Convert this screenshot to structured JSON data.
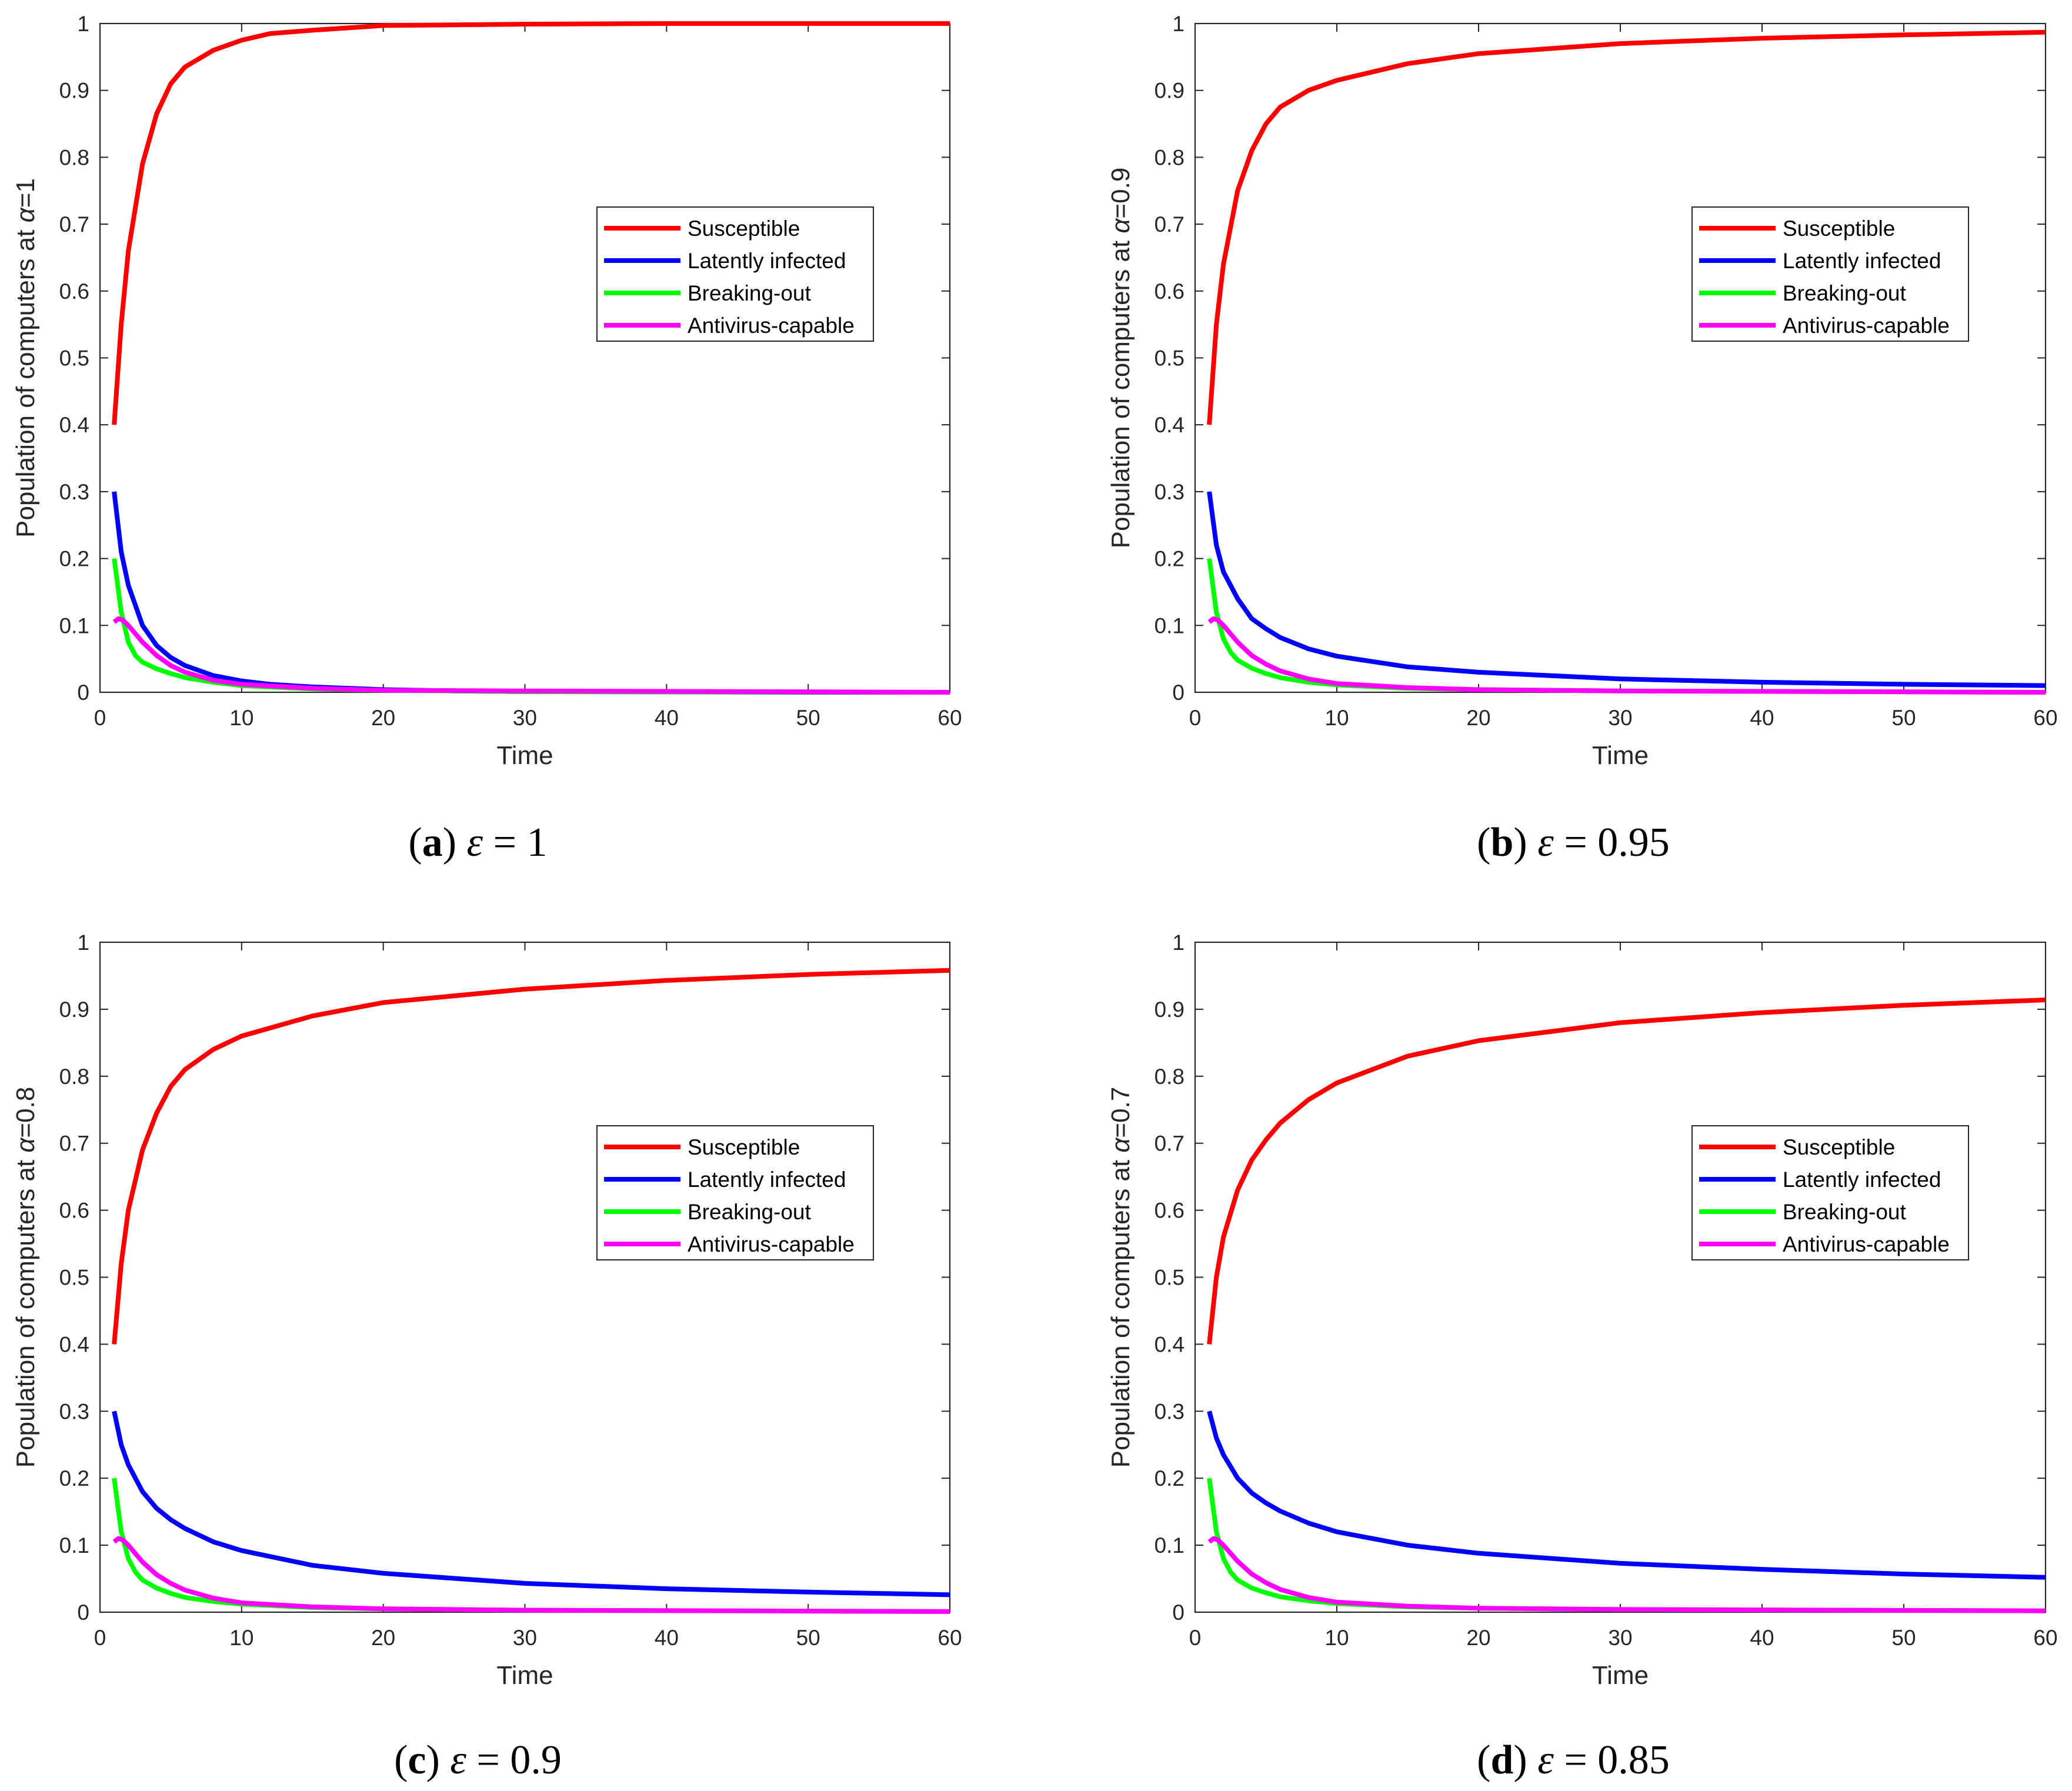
{
  "colors": {
    "susceptible": "#ff0000",
    "latently_infected": "#0000ff",
    "breaking_out": "#00ff00",
    "antivirus_capable": "#ff00ff",
    "axis": "#262626"
  },
  "legend_labels": [
    "Susceptible",
    "Latently infected",
    "Breaking-out",
    "Antivirus-capable"
  ],
  "chart_data": [
    {
      "type": "line",
      "panel": "a",
      "caption": {
        "letter": "a",
        "symbol": "ε",
        "rest": " = 1"
      },
      "xlabel": "Time",
      "ylabel_prefix": "Population of computers at ",
      "ylabel_symbol": "α",
      "ylabel_suffix": "=1",
      "xlim": [
        0,
        60
      ],
      "ylim": [
        0,
        1
      ],
      "xticks": [
        "0",
        "10",
        "20",
        "30",
        "40",
        "50",
        "60"
      ],
      "yticks": [
        "0",
        "0.1",
        "0.2",
        "0.3",
        "0.4",
        "0.5",
        "0.6",
        "0.7",
        "0.8",
        "0.9",
        "1"
      ],
      "legend_position": "middle-right",
      "series": [
        {
          "name": "Susceptible",
          "x": [
            1,
            1.5,
            2,
            3,
            4,
            5,
            6,
            8,
            10,
            12,
            15,
            20,
            25,
            30,
            40,
            50,
            60
          ],
          "values": [
            0.4,
            0.55,
            0.66,
            0.79,
            0.865,
            0.91,
            0.935,
            0.96,
            0.975,
            0.985,
            0.99,
            0.997,
            0.998,
            0.999,
            1.0,
            1.0,
            1.0
          ]
        },
        {
          "name": "Latently infected",
          "x": [
            1,
            1.5,
            2,
            3,
            4,
            5,
            6,
            8,
            10,
            12,
            15,
            20,
            25,
            30,
            40,
            50,
            60
          ],
          "values": [
            0.3,
            0.21,
            0.16,
            0.1,
            0.07,
            0.052,
            0.04,
            0.025,
            0.017,
            0.012,
            0.008,
            0.004,
            0.002,
            0.001,
            0.0005,
            0.0,
            0.0
          ]
        },
        {
          "name": "Breaking-out",
          "x": [
            1,
            1.5,
            2,
            2.5,
            3,
            4,
            5,
            6,
            8,
            10,
            15,
            20,
            30,
            60
          ],
          "values": [
            0.2,
            0.12,
            0.075,
            0.055,
            0.045,
            0.035,
            0.028,
            0.022,
            0.015,
            0.01,
            0.005,
            0.003,
            0.001,
            0.0
          ]
        },
        {
          "name": "Antivirus-capable",
          "x": [
            1,
            1.3,
            1.6,
            2,
            3,
            4,
            5,
            6,
            8,
            10,
            15,
            20,
            30,
            60
          ],
          "values": [
            0.105,
            0.11,
            0.108,
            0.1,
            0.075,
            0.055,
            0.04,
            0.03,
            0.018,
            0.012,
            0.006,
            0.003,
            0.002,
            0.0
          ]
        }
      ]
    },
    {
      "type": "line",
      "panel": "b",
      "caption": {
        "letter": "b",
        "symbol": "ε",
        "rest": " = 0.95"
      },
      "xlabel": "Time",
      "ylabel_prefix": "Population of computers at ",
      "ylabel_symbol": "α",
      "ylabel_suffix": "=0.9",
      "xlim": [
        0,
        60
      ],
      "ylim": [
        0,
        1
      ],
      "xticks": [
        "0",
        "10",
        "20",
        "30",
        "40",
        "50",
        "60"
      ],
      "yticks": [
        "0",
        "0.1",
        "0.2",
        "0.3",
        "0.4",
        "0.5",
        "0.6",
        "0.7",
        "0.8",
        "0.9",
        "1"
      ],
      "legend_position": "middle-right",
      "series": [
        {
          "name": "Susceptible",
          "x": [
            1,
            1.5,
            2,
            3,
            4,
            5,
            6,
            8,
            10,
            15,
            20,
            30,
            40,
            50,
            60
          ],
          "values": [
            0.4,
            0.55,
            0.64,
            0.75,
            0.81,
            0.85,
            0.875,
            0.9,
            0.915,
            0.94,
            0.955,
            0.97,
            0.978,
            0.983,
            0.987
          ]
        },
        {
          "name": "Latently infected",
          "x": [
            1,
            1.5,
            2,
            3,
            4,
            5,
            6,
            8,
            10,
            15,
            20,
            30,
            40,
            50,
            60
          ],
          "values": [
            0.3,
            0.22,
            0.18,
            0.14,
            0.11,
            0.095,
            0.082,
            0.065,
            0.054,
            0.038,
            0.03,
            0.02,
            0.015,
            0.012,
            0.01
          ]
        },
        {
          "name": "Breaking-out",
          "x": [
            1,
            1.5,
            2,
            2.5,
            3,
            4,
            5,
            6,
            8,
            10,
            15,
            20,
            30,
            60
          ],
          "values": [
            0.2,
            0.12,
            0.08,
            0.06,
            0.048,
            0.036,
            0.028,
            0.022,
            0.015,
            0.011,
            0.006,
            0.004,
            0.002,
            0.0
          ]
        },
        {
          "name": "Antivirus-capable",
          "x": [
            1,
            1.3,
            1.6,
            2,
            3,
            4,
            5,
            6,
            8,
            10,
            15,
            20,
            30,
            60
          ],
          "values": [
            0.105,
            0.11,
            0.108,
            0.1,
            0.075,
            0.055,
            0.042,
            0.032,
            0.02,
            0.013,
            0.007,
            0.004,
            0.002,
            0.0
          ]
        }
      ]
    },
    {
      "type": "line",
      "panel": "c",
      "caption": {
        "letter": "c",
        "symbol": "ε",
        "rest": " = 0.9"
      },
      "xlabel": "Time",
      "ylabel_prefix": "Population of computers at ",
      "ylabel_symbol": "α",
      "ylabel_suffix": "=0.8",
      "xlim": [
        0,
        60
      ],
      "ylim": [
        0,
        1
      ],
      "xticks": [
        "0",
        "10",
        "20",
        "30",
        "40",
        "50",
        "60"
      ],
      "yticks": [
        "0",
        "0.1",
        "0.2",
        "0.3",
        "0.4",
        "0.5",
        "0.6",
        "0.7",
        "0.8",
        "0.9",
        "1"
      ],
      "legend_position": "middle-right",
      "series": [
        {
          "name": "Susceptible",
          "x": [
            1,
            1.5,
            2,
            3,
            4,
            5,
            6,
            8,
            10,
            15,
            20,
            30,
            40,
            50,
            60
          ],
          "values": [
            0.4,
            0.52,
            0.6,
            0.69,
            0.745,
            0.785,
            0.81,
            0.84,
            0.86,
            0.89,
            0.91,
            0.93,
            0.943,
            0.952,
            0.958
          ]
        },
        {
          "name": "Latently infected",
          "x": [
            1,
            1.5,
            2,
            3,
            4,
            5,
            6,
            8,
            10,
            15,
            20,
            30,
            40,
            50,
            60
          ],
          "values": [
            0.3,
            0.25,
            0.22,
            0.18,
            0.155,
            0.138,
            0.125,
            0.105,
            0.092,
            0.07,
            0.058,
            0.043,
            0.035,
            0.03,
            0.026
          ]
        },
        {
          "name": "Breaking-out",
          "x": [
            1,
            1.5,
            2,
            2.5,
            3,
            4,
            5,
            6,
            8,
            10,
            15,
            20,
            30,
            60
          ],
          "values": [
            0.2,
            0.12,
            0.08,
            0.06,
            0.048,
            0.036,
            0.028,
            0.022,
            0.016,
            0.012,
            0.007,
            0.005,
            0.003,
            0.001
          ]
        },
        {
          "name": "Antivirus-capable",
          "x": [
            1,
            1.3,
            1.6,
            2,
            3,
            4,
            5,
            6,
            8,
            10,
            15,
            20,
            30,
            60
          ],
          "values": [
            0.105,
            0.11,
            0.108,
            0.1,
            0.075,
            0.056,
            0.043,
            0.033,
            0.021,
            0.014,
            0.008,
            0.005,
            0.003,
            0.001
          ]
        }
      ]
    },
    {
      "type": "line",
      "panel": "d",
      "caption": {
        "letter": "d",
        "symbol": "ε",
        "rest": " = 0.85"
      },
      "xlabel": "Time",
      "ylabel_prefix": "Population of computers at ",
      "ylabel_symbol": "α",
      "ylabel_suffix": "=0.7",
      "xlim": [
        0,
        60
      ],
      "ylim": [
        0,
        1
      ],
      "xticks": [
        "0",
        "10",
        "20",
        "30",
        "40",
        "50",
        "60"
      ],
      "yticks": [
        "0",
        "0.1",
        "0.2",
        "0.3",
        "0.4",
        "0.5",
        "0.6",
        "0.7",
        "0.8",
        "0.9",
        "1"
      ],
      "legend_position": "middle-right",
      "series": [
        {
          "name": "Susceptible",
          "x": [
            1,
            1.5,
            2,
            3,
            4,
            5,
            6,
            8,
            10,
            15,
            20,
            30,
            40,
            50,
            60
          ],
          "values": [
            0.4,
            0.5,
            0.56,
            0.63,
            0.675,
            0.705,
            0.73,
            0.765,
            0.79,
            0.83,
            0.853,
            0.88,
            0.895,
            0.906,
            0.914
          ]
        },
        {
          "name": "Latently infected",
          "x": [
            1,
            1.5,
            2,
            3,
            4,
            5,
            6,
            8,
            10,
            15,
            20,
            30,
            40,
            50,
            60
          ],
          "values": [
            0.3,
            0.26,
            0.235,
            0.2,
            0.178,
            0.163,
            0.151,
            0.133,
            0.12,
            0.1,
            0.088,
            0.073,
            0.064,
            0.057,
            0.052
          ]
        },
        {
          "name": "Breaking-out",
          "x": [
            1,
            1.5,
            2,
            2.5,
            3,
            4,
            5,
            6,
            8,
            10,
            15,
            20,
            30,
            60
          ],
          "values": [
            0.2,
            0.12,
            0.08,
            0.06,
            0.048,
            0.036,
            0.029,
            0.023,
            0.017,
            0.013,
            0.008,
            0.006,
            0.004,
            0.002
          ]
        },
        {
          "name": "Antivirus-capable",
          "x": [
            1,
            1.3,
            1.6,
            2,
            3,
            4,
            5,
            6,
            8,
            10,
            15,
            20,
            30,
            60
          ],
          "values": [
            0.105,
            0.11,
            0.108,
            0.1,
            0.076,
            0.057,
            0.044,
            0.034,
            0.022,
            0.015,
            0.009,
            0.006,
            0.004,
            0.002
          ]
        }
      ]
    }
  ]
}
